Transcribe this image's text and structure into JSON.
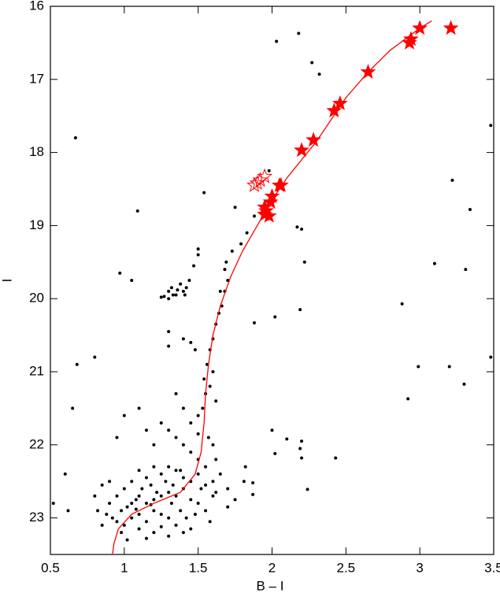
{
  "chart_data": {
    "type": "scatter",
    "x_label": "B – I",
    "y_label": "I",
    "xlim": [
      0.5,
      3.5
    ],
    "ylim": [
      23.5,
      16
    ],
    "xticks": [
      0.5,
      1,
      1.5,
      2,
      2.5,
      3,
      3.5
    ],
    "yticks": [
      16,
      17,
      18,
      19,
      20,
      21,
      22,
      23
    ],
    "series": [
      {
        "marker": "dot",
        "color": "#000000",
        "x": [
          0.67,
          1.09,
          0.97,
          1.05,
          0.68,
          0.65,
          0.8,
          0.6,
          0.62,
          0.52,
          2.03,
          2.18,
          2.27,
          2.32,
          3.48,
          3.22,
          3.34,
          3.1,
          3.31,
          2.88,
          3.48,
          2.99,
          3.2,
          3.3,
          2.92,
          1.54,
          1.75,
          2.17,
          2.2,
          2.22,
          2.19,
          2.02,
          1.88,
          2.0,
          2.1,
          2.2,
          2.19,
          2.2,
          2.02,
          2.43,
          2.24,
          1.81,
          1.75,
          1.87,
          1.87,
          1.82,
          1.98,
          1.88,
          1.83,
          1.79,
          1.73,
          1.69,
          1.68,
          1.65,
          1.3,
          1.32,
          1.35,
          1.38,
          1.4,
          1.42,
          1.36,
          1.33,
          1.3,
          1.41,
          1.44,
          1.47,
          1.5,
          1.5,
          1.27,
          1.25,
          1.7,
          1.68,
          1.66,
          1.64,
          1.62,
          1.6,
          1.58,
          1.56,
          1.54,
          1.55,
          1.53,
          1.5,
          1.6,
          1.58,
          1.62,
          1.48,
          1.45,
          1.4,
          1.3,
          1.3,
          1.5,
          1.45,
          1.4,
          1.35,
          1.57,
          1.6,
          1.62,
          1.55,
          1.5,
          1.45,
          1.4,
          1.35,
          1.3,
          1.25,
          1.2,
          1.15,
          1.1,
          1.0,
          0.95,
          1.65,
          1.7,
          1.6,
          1.55,
          1.5,
          1.45,
          1.4,
          1.35,
          1.3,
          1.25,
          1.2,
          1.15,
          1.1,
          1.05,
          1.0,
          0.95,
          0.9,
          0.88,
          0.92,
          0.95,
          0.98,
          1.02,
          1.05,
          1.08,
          1.1,
          1.15,
          1.2,
          1.25,
          1.3,
          1.35,
          1.4,
          1.45,
          1.5,
          1.55,
          1.6,
          1.0,
          1.05,
          1.1,
          1.15,
          1.2,
          1.25,
          1.3,
          1.35,
          1.4,
          1.45,
          1.1,
          1.2,
          1.3,
          0.98,
          0.85,
          0.82,
          0.8,
          0.85,
          0.9,
          1.12,
          1.18,
          1.28,
          1.02,
          1.15,
          1.25,
          1.08,
          1.18,
          1.22,
          1.32,
          1.38,
          1.42,
          1.48,
          1.52,
          1.62,
          1.7,
          1.58,
          1.33,
          1.38
        ],
        "values": [
          17.8,
          18.8,
          19.65,
          19.75,
          20.9,
          21.5,
          20.8,
          22.4,
          22.9,
          22.8,
          16.48,
          16.37,
          16.77,
          16.93,
          17.63,
          18.38,
          18.78,
          19.52,
          19.6,
          20.07,
          20.8,
          20.93,
          20.93,
          21.17,
          21.37,
          18.55,
          18.75,
          19.02,
          19.05,
          19.5,
          20.15,
          20.25,
          20.33,
          21.8,
          21.92,
          21.95,
          22.05,
          22.18,
          22.12,
          22.18,
          22.61,
          22.5,
          22.75,
          22.68,
          22.52,
          22.3,
          18.25,
          18.87,
          19.1,
          19.25,
          19.35,
          19.5,
          19.6,
          19.9,
          19.9,
          19.85,
          19.95,
          19.8,
          19.9,
          19.85,
          19.88,
          19.95,
          20.0,
          19.95,
          19.75,
          19.55,
          19.4,
          19.32,
          19.97,
          19.98,
          19.75,
          19.9,
          20.1,
          20.2,
          20.35,
          20.55,
          20.7,
          20.9,
          21.1,
          21.3,
          21.5,
          21.6,
          21.0,
          21.2,
          21.4,
          20.7,
          20.6,
          20.55,
          20.45,
          20.65,
          21.85,
          21.7,
          21.5,
          21.3,
          21.9,
          22.0,
          22.2,
          22.3,
          22.2,
          22.1,
          22.0,
          21.9,
          21.8,
          21.7,
          22.0,
          21.8,
          21.5,
          21.6,
          21.9,
          22.4,
          22.6,
          22.5,
          22.55,
          22.4,
          22.5,
          22.45,
          22.35,
          22.3,
          22.4,
          22.3,
          22.45,
          22.35,
          22.5,
          22.6,
          22.7,
          22.8,
          22.95,
          23.0,
          23.05,
          22.9,
          22.85,
          22.8,
          22.75,
          22.7,
          22.8,
          22.75,
          22.7,
          22.65,
          22.7,
          22.6,
          22.75,
          22.8,
          22.9,
          22.7,
          23.1,
          23.0,
          22.95,
          23.05,
          22.9,
          22.95,
          23.0,
          23.1,
          23.2,
          23.15,
          23.15,
          23.2,
          23.25,
          23.2,
          23.1,
          22.9,
          22.7,
          22.55,
          22.5,
          22.6,
          22.55,
          22.5,
          23.3,
          23.28,
          23.12,
          22.88,
          22.82,
          22.65,
          22.8,
          22.9,
          23.0,
          22.95,
          22.6,
          22.65,
          22.85,
          23.05,
          22.55,
          22.35
        ]
      },
      {
        "marker": "line",
        "color": "#ff0000",
        "x": [
          3.08,
          3.0,
          2.8,
          2.65,
          2.5,
          2.4,
          2.3,
          2.2,
          2.1,
          2.0,
          1.9,
          1.8,
          1.72,
          1.65,
          1.6,
          1.57,
          1.55,
          1.54,
          1.52,
          1.48,
          1.38,
          1.2,
          1.05,
          0.96,
          0.93,
          0.92
        ],
        "values": [
          16.2,
          16.3,
          16.6,
          16.9,
          17.25,
          17.55,
          17.85,
          18.1,
          18.35,
          18.65,
          19.0,
          19.35,
          19.7,
          20.1,
          20.5,
          20.9,
          21.3,
          21.7,
          22.1,
          22.4,
          22.65,
          22.8,
          22.95,
          23.15,
          23.35,
          23.5
        ]
      },
      {
        "marker": "star-filled",
        "color": "#ff0000",
        "x": [
          3.0,
          3.21,
          2.93,
          2.94,
          2.65,
          2.46,
          2.42,
          2.28,
          2.2,
          2.05,
          2.06,
          2.0,
          1.99,
          1.96,
          1.95,
          1.98,
          1.95
        ],
        "values": [
          16.3,
          16.3,
          16.5,
          16.45,
          16.9,
          17.33,
          17.43,
          17.83,
          17.97,
          18.45,
          18.45,
          18.6,
          18.68,
          18.8,
          18.85,
          18.87,
          18.75
        ]
      },
      {
        "marker": "star-open",
        "color": "#ff0000",
        "x": [
          1.88,
          1.92,
          1.95,
          1.9
        ],
        "values": [
          18.45,
          18.38,
          18.33,
          18.42
        ]
      }
    ]
  }
}
